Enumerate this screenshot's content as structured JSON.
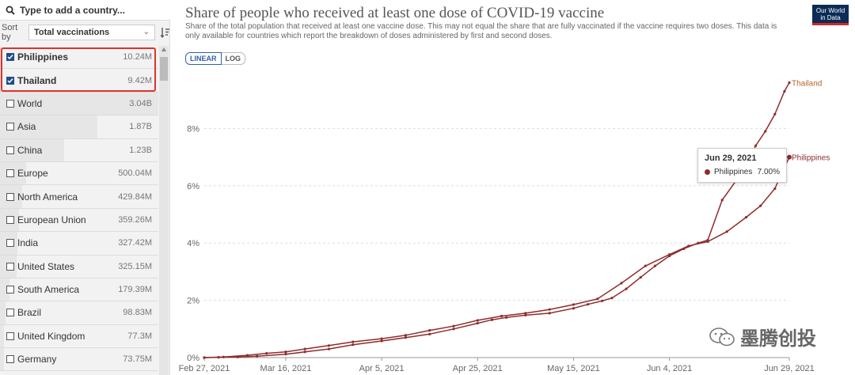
{
  "search": {
    "placeholder": "Type to add a country..."
  },
  "sort": {
    "label": "Sort by",
    "selected": "Total vaccinations"
  },
  "countries": [
    {
      "name": "Philippines",
      "value": "10.24M",
      "checked": true
    },
    {
      "name": "Thailand",
      "value": "9.42M",
      "checked": true
    },
    {
      "name": "World",
      "value": "3.04B",
      "checked": false
    },
    {
      "name": "Asia",
      "value": "1.87B",
      "checked": false
    },
    {
      "name": "China",
      "value": "1.23B",
      "checked": false
    },
    {
      "name": "Europe",
      "value": "500.04M",
      "checked": false
    },
    {
      "name": "North America",
      "value": "429.84M",
      "checked": false
    },
    {
      "name": "European Union",
      "value": "359.26M",
      "checked": false
    },
    {
      "name": "India",
      "value": "327.42M",
      "checked": false
    },
    {
      "name": "United States",
      "value": "325.15M",
      "checked": false
    },
    {
      "name": "South America",
      "value": "179.39M",
      "checked": false
    },
    {
      "name": "Brazil",
      "value": "98.83M",
      "checked": false
    },
    {
      "name": "United Kingdom",
      "value": "77.3M",
      "checked": false
    },
    {
      "name": "Germany",
      "value": "73.75M",
      "checked": false
    }
  ],
  "logo": {
    "line1": "Our World",
    "line2": "in Data"
  },
  "scale": {
    "linear": "LINEAR",
    "log": "LOG"
  },
  "tooltip": {
    "date": "Jun 29, 2021",
    "series": "Philippines",
    "value": "7.00%"
  },
  "watermark": "墨腾创投",
  "colors": {
    "series": "#8e2c2c",
    "accent": "#3360a9",
    "brand": "#0c2b56",
    "highlight": "#e0322b"
  },
  "chart_data": {
    "type": "line",
    "title": "Share of people who received at least one dose of COVID-19 vaccine",
    "subtitle": "Share of the total population that received at least one vaccine dose. This may not equal the share that are fully vaccinated if the vaccine requires two doses. This data is only available for countries which report the breakdown of doses administered by first and second doses.",
    "xlabel": "",
    "ylabel": "",
    "x_range": [
      "2021-02-27",
      "2021-06-29"
    ],
    "ylim": [
      0,
      10
    ],
    "y_ticks": [
      0,
      2,
      4,
      6,
      8
    ],
    "y_tick_labels": [
      "0%",
      "2%",
      "4%",
      "6%",
      "8%"
    ],
    "x_ticks": [
      "2021-02-27",
      "2021-03-16",
      "2021-04-05",
      "2021-04-25",
      "2021-05-15",
      "2021-06-04",
      "2021-06-29"
    ],
    "x_tick_labels": [
      "Feb 27, 2021",
      "Mar 16, 2021",
      "Apr 5, 2021",
      "Apr 25, 2021",
      "May 15, 2021",
      "Jun 4, 2021",
      "Jun 29, 2021"
    ],
    "grid": "horizontal dashed",
    "series": [
      {
        "name": "Thailand",
        "points": [
          [
            "2021-02-27",
            0.0
          ],
          [
            "2021-03-02",
            0.01
          ],
          [
            "2021-03-06",
            0.02
          ],
          [
            "2021-03-10",
            0.05
          ],
          [
            "2021-03-16",
            0.12
          ],
          [
            "2021-03-20",
            0.2
          ],
          [
            "2021-03-25",
            0.3
          ],
          [
            "2021-03-30",
            0.45
          ],
          [
            "2021-04-05",
            0.58
          ],
          [
            "2021-04-10",
            0.7
          ],
          [
            "2021-04-15",
            0.82
          ],
          [
            "2021-04-20",
            1.0
          ],
          [
            "2021-04-25",
            1.2
          ],
          [
            "2021-04-28",
            1.32
          ],
          [
            "2021-05-01",
            1.4
          ],
          [
            "2021-05-05",
            1.48
          ],
          [
            "2021-05-10",
            1.55
          ],
          [
            "2021-05-15",
            1.72
          ],
          [
            "2021-05-18",
            1.86
          ],
          [
            "2021-05-21",
            1.98
          ],
          [
            "2021-05-23",
            2.08
          ],
          [
            "2021-05-26",
            2.4
          ],
          [
            "2021-05-29",
            2.8
          ],
          [
            "2021-06-01",
            3.2
          ],
          [
            "2021-06-04",
            3.55
          ],
          [
            "2021-06-07",
            3.8
          ],
          [
            "2021-06-10",
            4.0
          ],
          [
            "2021-06-12",
            4.1
          ],
          [
            "2021-06-15",
            5.5
          ],
          [
            "2021-06-18",
            6.2
          ],
          [
            "2021-06-20",
            6.7
          ],
          [
            "2021-06-22",
            7.4
          ],
          [
            "2021-06-24",
            7.9
          ],
          [
            "2021-06-26",
            8.5
          ],
          [
            "2021-06-28",
            9.3
          ],
          [
            "2021-06-29",
            9.6
          ]
        ]
      },
      {
        "name": "Philippines",
        "points": [
          [
            "2021-02-27",
            0.0
          ],
          [
            "2021-03-03",
            0.02
          ],
          [
            "2021-03-08",
            0.08
          ],
          [
            "2021-03-12",
            0.15
          ],
          [
            "2021-03-16",
            0.2
          ],
          [
            "2021-03-20",
            0.3
          ],
          [
            "2021-03-25",
            0.42
          ],
          [
            "2021-03-30",
            0.55
          ],
          [
            "2021-04-05",
            0.66
          ],
          [
            "2021-04-10",
            0.78
          ],
          [
            "2021-04-15",
            0.95
          ],
          [
            "2021-04-20",
            1.1
          ],
          [
            "2021-04-25",
            1.3
          ],
          [
            "2021-04-30",
            1.45
          ],
          [
            "2021-05-05",
            1.55
          ],
          [
            "2021-05-10",
            1.68
          ],
          [
            "2021-05-15",
            1.85
          ],
          [
            "2021-05-20",
            2.05
          ],
          [
            "2021-05-25",
            2.6
          ],
          [
            "2021-05-30",
            3.2
          ],
          [
            "2021-06-04",
            3.6
          ],
          [
            "2021-06-08",
            3.9
          ],
          [
            "2021-06-12",
            4.05
          ],
          [
            "2021-06-16",
            4.4
          ],
          [
            "2021-06-20",
            4.9
          ],
          [
            "2021-06-23",
            5.3
          ],
          [
            "2021-06-26",
            5.9
          ],
          [
            "2021-06-29",
            7.0
          ]
        ]
      }
    ]
  }
}
